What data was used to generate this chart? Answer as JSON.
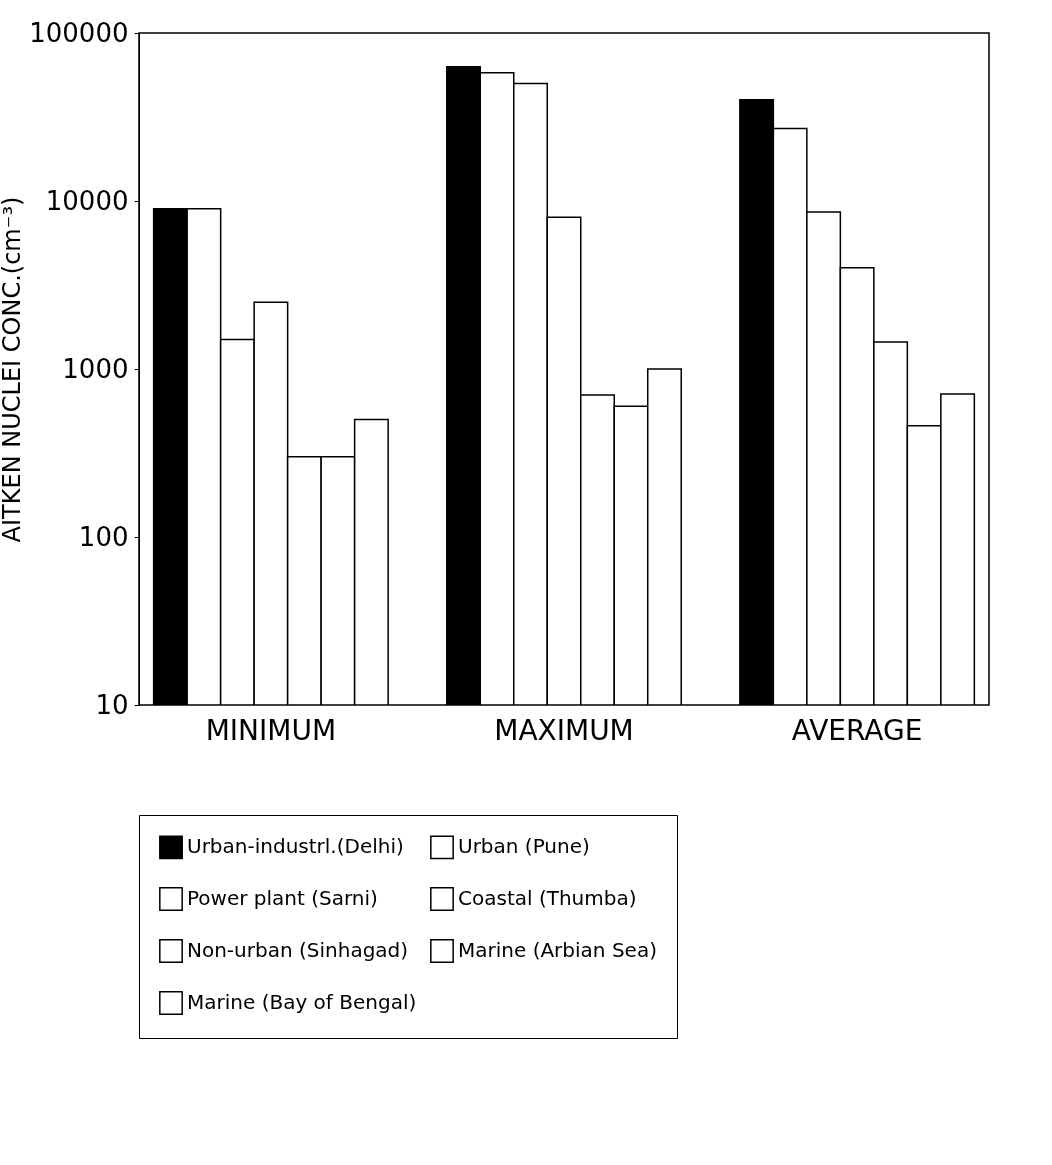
{
  "chart_data": {
    "type": "bar",
    "ylabel": "AITKEN NUCLEI CONC.(cm⁻³)",
    "categories": [
      "MINIMUM",
      "MAXIMUM",
      "AVERAGE"
    ],
    "log": true,
    "ylim": [
      10,
      100000
    ],
    "yticks": [
      10,
      100,
      1000,
      10000,
      100000
    ],
    "grid": false,
    "legend": "bottom",
    "series": [
      {
        "name": "Urban-industrl.(Delhi)",
        "color": "#000000",
        "values": [
          9000,
          63000,
          40000
        ]
      },
      {
        "name": "Urban (Pune)",
        "color": "#ffffff",
        "values": [
          9000,
          58000,
          27000
        ]
      },
      {
        "name": "Power plant (Sarni)",
        "color": "#ffffff",
        "values": [
          1500,
          50000,
          8600
        ]
      },
      {
        "name": "Coastal (Thumba)",
        "color": "#ffffff",
        "values": [
          2500,
          8000,
          4000
        ]
      },
      {
        "name": "Non-urban (Sinhagad)",
        "color": "#ffffff",
        "values": [
          300,
          700,
          1450
        ]
      },
      {
        "name": "Marine (Arbian Sea)",
        "color": "#ffffff",
        "values": [
          300,
          600,
          460
        ]
      },
      {
        "name": "Marine (Bay of Bengal)",
        "color": "#ffffff",
        "values": [
          500,
          1000,
          710
        ]
      }
    ]
  }
}
